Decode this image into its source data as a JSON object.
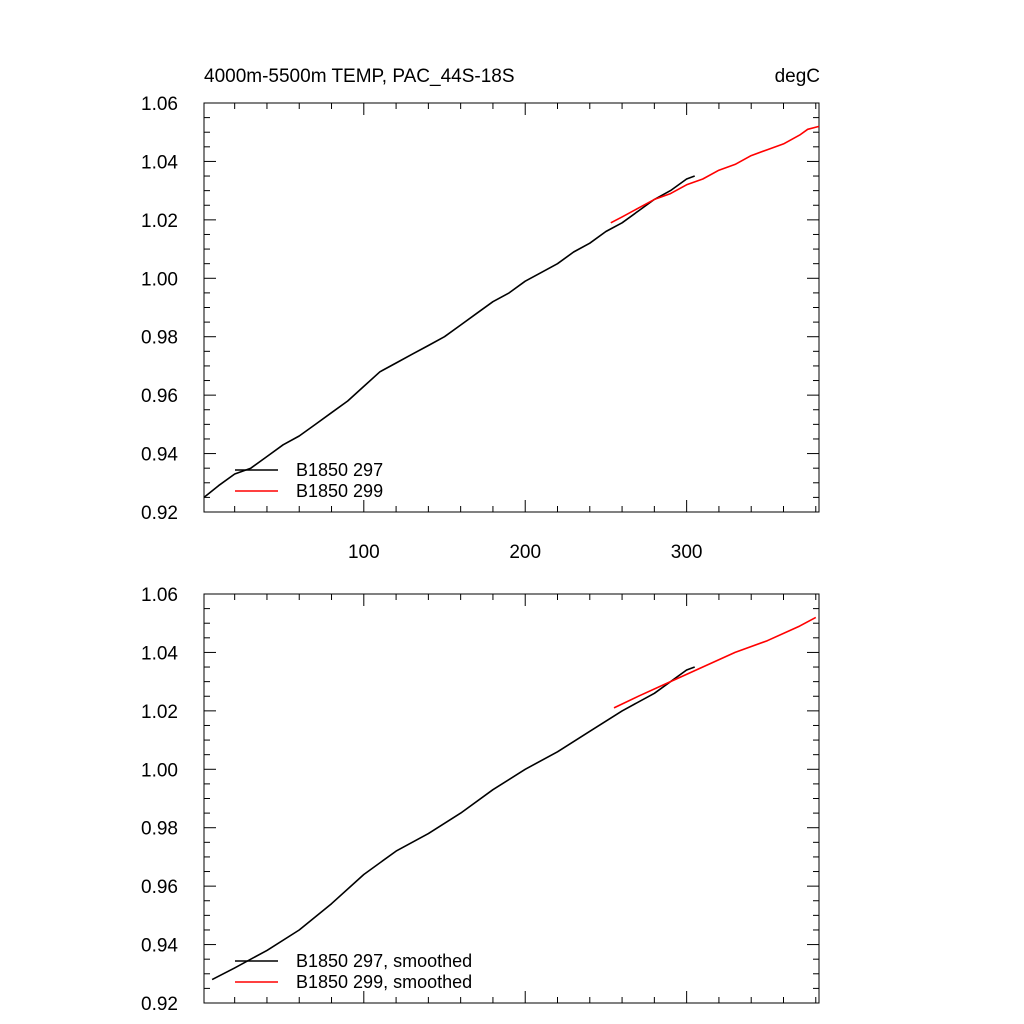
{
  "chart_data": [
    {
      "type": "line",
      "title_left": "4000m-5500m TEMP, PAC_44S-18S",
      "title_right": "degC",
      "xlim": [
        1,
        382
      ],
      "ylim": [
        0.92,
        1.06
      ],
      "xticks": [
        100,
        200,
        300
      ],
      "xtick_labels": [
        "100",
        "200",
        "300"
      ],
      "yticks": [
        0.92,
        0.94,
        0.96,
        0.98,
        1.0,
        1.02,
        1.04,
        1.06
      ],
      "ytick_labels": [
        "0.92",
        "0.94",
        "0.96",
        "0.98",
        "1.00",
        "1.02",
        "1.04",
        "1.06"
      ],
      "legend_position": "bottom-left",
      "series": [
        {
          "name": "B1850 297",
          "color": "#000000",
          "x": [
            1,
            10,
            20,
            30,
            40,
            50,
            60,
            70,
            80,
            90,
            100,
            110,
            120,
            130,
            140,
            150,
            160,
            170,
            180,
            190,
            200,
            210,
            220,
            230,
            240,
            250,
            260,
            270,
            280,
            290,
            300,
            305
          ],
          "y": [
            0.925,
            0.929,
            0.933,
            0.935,
            0.939,
            0.943,
            0.946,
            0.95,
            0.954,
            0.958,
            0.963,
            0.968,
            0.971,
            0.974,
            0.977,
            0.98,
            0.984,
            0.988,
            0.992,
            0.995,
            0.999,
            1.002,
            1.005,
            1.009,
            1.012,
            1.016,
            1.019,
            1.023,
            1.027,
            1.03,
            1.034,
            1.035
          ]
        },
        {
          "name": "B1850 299",
          "color": "#ff0000",
          "x": [
            253,
            260,
            270,
            280,
            290,
            300,
            310,
            320,
            330,
            340,
            350,
            360,
            370,
            375,
            382
          ],
          "y": [
            1.019,
            1.021,
            1.024,
            1.027,
            1.029,
            1.032,
            1.034,
            1.037,
            1.039,
            1.042,
            1.044,
            1.046,
            1.049,
            1.051,
            1.052
          ]
        }
      ]
    },
    {
      "type": "line",
      "xlim": [
        1,
        382
      ],
      "ylim": [
        0.92,
        1.06
      ],
      "xticks": [
        100,
        200,
        300
      ],
      "yticks": [
        0.92,
        0.94,
        0.96,
        0.98,
        1.0,
        1.02,
        1.04,
        1.06
      ],
      "ytick_labels": [
        "0.92",
        "0.94",
        "0.96",
        "0.98",
        "1.00",
        "1.02",
        "1.04",
        "1.06"
      ],
      "legend_position": "bottom-left",
      "series": [
        {
          "name": "B1850 297, smoothed",
          "color": "#000000",
          "x": [
            6,
            20,
            40,
            60,
            80,
            100,
            120,
            140,
            160,
            180,
            200,
            220,
            240,
            260,
            280,
            300,
            305
          ],
          "y": [
            0.928,
            0.932,
            0.938,
            0.945,
            0.954,
            0.964,
            0.972,
            0.978,
            0.985,
            0.993,
            1.0,
            1.006,
            1.013,
            1.02,
            1.026,
            1.034,
            1.035
          ]
        },
        {
          "name": "B1850 299, smoothed",
          "color": "#ff0000",
          "x": [
            255,
            270,
            290,
            310,
            330,
            350,
            370,
            380
          ],
          "y": [
            1.021,
            1.025,
            1.03,
            1.035,
            1.04,
            1.044,
            1.049,
            1.052
          ]
        }
      ]
    }
  ]
}
